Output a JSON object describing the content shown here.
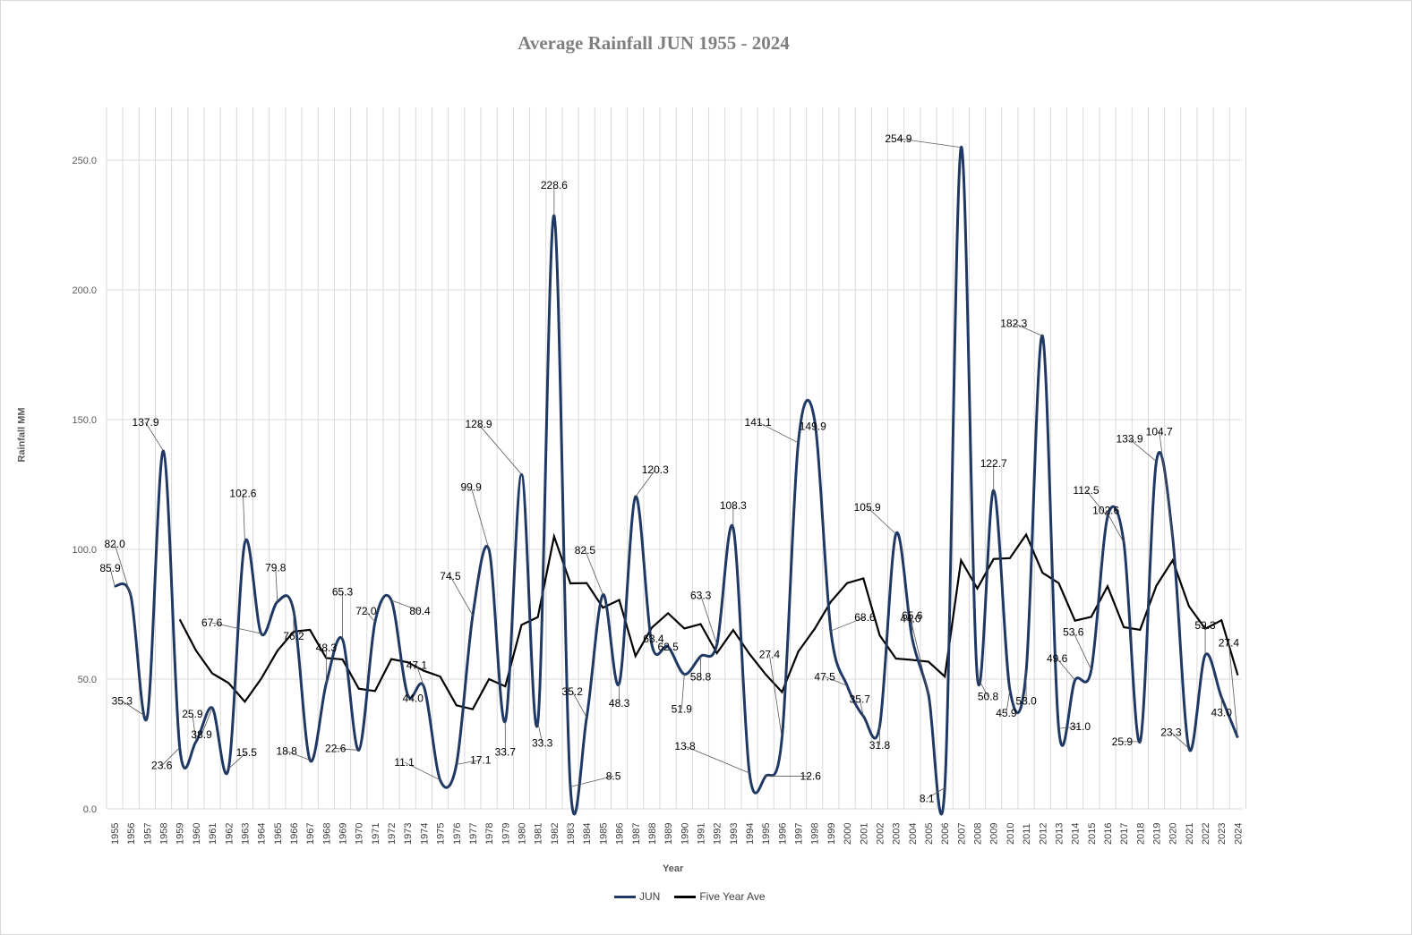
{
  "chart_data": {
    "type": "line",
    "title": "Average Rainfall JUN 1955 - 2024",
    "xlabel": "Year",
    "ylabel": "Rainfall MM",
    "ylim": [
      0,
      270
    ],
    "yticks": [
      "0.0",
      "50.0",
      "100.0",
      "150.0",
      "200.0",
      "250.0"
    ],
    "grid": true,
    "legend_position": "bottom",
    "x": [
      1955,
      1956,
      1957,
      1958,
      1959,
      1960,
      1961,
      1962,
      1963,
      1964,
      1965,
      1966,
      1967,
      1968,
      1969,
      1970,
      1971,
      1972,
      1973,
      1974,
      1975,
      1976,
      1977,
      1978,
      1979,
      1980,
      1981,
      1982,
      1983,
      1984,
      1985,
      1986,
      1987,
      1988,
      1989,
      1990,
      1991,
      1992,
      1993,
      1994,
      1995,
      1996,
      1997,
      1998,
      1999,
      2000,
      2001,
      2002,
      2003,
      2004,
      2005,
      2006,
      2007,
      2008,
      2009,
      2010,
      2011,
      2012,
      2013,
      2014,
      2015,
      2016,
      2017,
      2018,
      2019,
      2020,
      2021,
      2022,
      2023,
      2024
    ],
    "series": [
      {
        "name": "JUN",
        "color": "#1f3864",
        "values": [
          85.9,
          82.0,
          35.3,
          137.9,
          23.6,
          25.9,
          38.9,
          15.5,
          102.6,
          67.6,
          79.8,
          76.2,
          18.8,
          48.3,
          65.3,
          22.6,
          72.0,
          80.4,
          44.0,
          47.1,
          11.1,
          17.1,
          74.5,
          99.9,
          33.7,
          128.9,
          33.3,
          228.6,
          8.5,
          35.2,
          82.5,
          48.3,
          120.3,
          63.4,
          62.5,
          51.9,
          58.8,
          63.3,
          108.3,
          13.8,
          12.6,
          27.4,
          141.1,
          149.9,
          68.6,
          47.5,
          35.7,
          31.8,
          105.9,
          65.6,
          44.0,
          8.1,
          254.9,
          50.8,
          122.7,
          45.9,
          53.0,
          182.3,
          31.0,
          49.6,
          53.6,
          112.5,
          102.6,
          25.9,
          133.9,
          104.7,
          23.3,
          59.3,
          43.0,
          27.4
        ]
      },
      {
        "name": "Five Year Ave",
        "color": "#000000",
        "values": [
          null,
          null,
          null,
          null,
          73.0,
          61.0,
          52.2,
          48.5,
          41.3,
          50.1,
          60.9,
          68.3,
          69.0,
          58.1,
          57.6,
          46.3,
          45.4,
          57.7,
          56.5,
          53.2,
          51.0,
          39.9,
          38.4,
          50.0,
          47.2,
          70.9,
          73.9,
          105.0,
          86.9,
          87.0,
          77.5,
          80.5,
          58.9,
          69.8,
          75.4,
          69.5,
          71.2,
          60.0,
          68.9,
          59.7,
          51.8,
          45.0,
          60.6,
          69.3,
          79.8,
          87.0,
          88.8,
          66.9,
          57.9,
          57.4,
          56.7,
          51.0,
          95.8,
          84.9,
          96.3,
          96.6,
          105.7,
          91.0,
          87.0,
          72.5,
          74.0,
          85.8,
          70.0,
          69.0,
          86.0,
          95.8,
          78.1,
          69.4,
          72.7,
          51.5
        ]
      }
    ],
    "data_labels": [
      "85.9",
      "82.0",
      "35.3",
      "137.9",
      "23.6",
      "25.9",
      "38.9",
      "15.5",
      "102.6",
      "67.6",
      "79.8",
      "76.2",
      "18.8",
      "48.3",
      "65.3",
      "22.6",
      "72.0",
      "80.4",
      "44.0",
      "47.1",
      "11.1",
      "17.1",
      "74.5",
      "99.9",
      "33.7",
      "128.9",
      "33.3",
      "228.6",
      "8.5",
      "35.2",
      "82.5",
      "48.3",
      "120.3",
      "63.4",
      "62.5",
      "51.9",
      "58.8",
      "63.3",
      "108.3",
      "13.8",
      "12.6",
      "27.4",
      "141.1",
      "149.9",
      "68.6",
      "47.5",
      "35.7",
      "31.8",
      "105.9",
      "65.6",
      "44.0",
      "8.1",
      "254.9",
      "50.8",
      "122.7",
      "45.9",
      "53.0",
      "182.3",
      "31.0",
      "49.6",
      "53.6",
      "112.5",
      "102.6",
      "25.9",
      "133.9",
      "104.7",
      "23.3",
      "59.3",
      "43.0",
      "27.4"
    ]
  }
}
